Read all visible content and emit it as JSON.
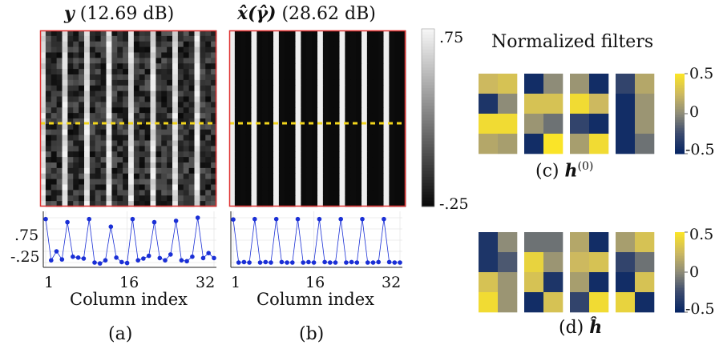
{
  "panels": {
    "a": {
      "title_var": "y",
      "title_db": "(12.69 dB)",
      "caption": "(a)",
      "xlabel": "Column index",
      "xticks": [
        "1",
        "16",
        "32"
      ],
      "yticks": [
        ".75",
        "-.25"
      ]
    },
    "b": {
      "title_var": "x̂(γ̂)",
      "title_db": "(28.62 dB)",
      "caption": "(b)",
      "xlabel": "Column index",
      "xticks": [
        "1",
        "16",
        "32"
      ]
    },
    "colorbar_gray": {
      "max_label": ".75",
      "min_label": "-.25"
    },
    "filters_title": "Normalized filters",
    "c": {
      "caption_prefix": "(c)",
      "caption_var": "h",
      "caption_sup": "(0)"
    },
    "d": {
      "caption_prefix": "(d)",
      "caption_var": "ĥ"
    },
    "colorbar_parula": {
      "labels": [
        "0.5",
        "0",
        "-0.5"
      ]
    },
    "colors": {
      "image_border": "#e03030",
      "dashed_line": "#f2d51c",
      "line_plot": "#1a2fd6",
      "parula_high": "#f8e22b",
      "parula_mid": "#8e8c78",
      "parula_low": "#0a2a66"
    }
  },
  "chart_data": [
    {
      "type": "line",
      "panel": "a",
      "x": [
        1,
        2,
        3,
        4,
        5,
        6,
        7,
        8,
        9,
        10,
        11,
        12,
        13,
        14,
        15,
        16,
        17,
        18,
        19,
        20,
        21,
        22,
        23,
        24,
        25,
        26,
        27,
        28,
        29,
        30,
        31,
        32
      ],
      "series": [
        {
          "values": [
            0.72,
            -0.2,
            0.0,
            -0.18,
            0.65,
            -0.12,
            -0.14,
            -0.16,
            0.72,
            -0.25,
            -0.27,
            -0.2,
            0.55,
            -0.14,
            -0.24,
            -0.26,
            0.72,
            -0.2,
            -0.16,
            -0.1,
            0.65,
            -0.15,
            -0.2,
            -0.07,
            0.68,
            -0.2,
            -0.22,
            -0.12,
            0.75,
            -0.15,
            -0.04,
            -0.15
          ]
        }
      ],
      "xlim": [
        1,
        32
      ],
      "ylim": [
        -0.25,
        0.75
      ]
    },
    {
      "type": "line",
      "panel": "b",
      "x": [
        1,
        2,
        3,
        4,
        5,
        6,
        7,
        8,
        9,
        10,
        11,
        12,
        13,
        14,
        15,
        16,
        17,
        18,
        19,
        20,
        21,
        22,
        23,
        24,
        25,
        26,
        27,
        28,
        29,
        30,
        31,
        32
      ],
      "series": [
        {
          "values": [
            0.71,
            -0.25,
            -0.24,
            -0.25,
            0.72,
            -0.25,
            -0.24,
            -0.25,
            0.72,
            -0.24,
            -0.25,
            -0.25,
            0.72,
            -0.25,
            -0.24,
            -0.25,
            0.72,
            -0.24,
            -0.25,
            -0.25,
            0.72,
            -0.25,
            -0.24,
            -0.25,
            0.72,
            -0.25,
            -0.25,
            -0.24,
            0.72,
            -0.24,
            -0.25,
            -0.25
          ]
        }
      ],
      "xlim": [
        1,
        32
      ],
      "ylim": [
        -0.25,
        0.75
      ]
    },
    {
      "type": "heatmap",
      "panel": "c",
      "filters": [
        [
          [
            0.25,
            0.3
          ],
          [
            -0.4,
            0.0
          ],
          [
            0.45,
            0.45
          ],
          [
            0.15,
            0.1
          ]
        ],
        [
          [
            -0.45,
            0.0
          ],
          [
            0.3,
            0.3
          ],
          [
            0.05,
            -0.1
          ],
          [
            -0.45,
            0.5
          ]
        ],
        [
          [
            0.05,
            -0.45
          ],
          [
            0.45,
            0.25
          ],
          [
            -0.3,
            -0.45
          ],
          [
            0.1,
            0.45
          ]
        ],
        [
          [
            -0.3,
            0.15
          ],
          [
            -0.45,
            0.05
          ],
          [
            -0.45,
            0.05
          ],
          [
            -0.45,
            -0.1
          ]
        ]
      ]
    },
    {
      "type": "heatmap",
      "panel": "d",
      "filters": [
        [
          [
            -0.4,
            0.0
          ],
          [
            -0.4,
            -0.2
          ],
          [
            0.3,
            0.05
          ],
          [
            0.45,
            0.05
          ]
        ],
        [
          [
            -0.1,
            -0.1
          ],
          [
            0.4,
            0.05
          ],
          [
            0.3,
            -0.4
          ],
          [
            -0.45,
            0.3
          ]
        ],
        [
          [
            0.15,
            -0.45
          ],
          [
            0.25,
            0.3
          ],
          [
            0.1,
            -0.45
          ],
          [
            -0.3,
            0.45
          ]
        ],
        [
          [
            0.1,
            0.3
          ],
          [
            -0.3,
            -0.1
          ],
          [
            -0.45,
            0.3
          ],
          [
            0.4,
            -0.45
          ]
        ]
      ]
    }
  ]
}
